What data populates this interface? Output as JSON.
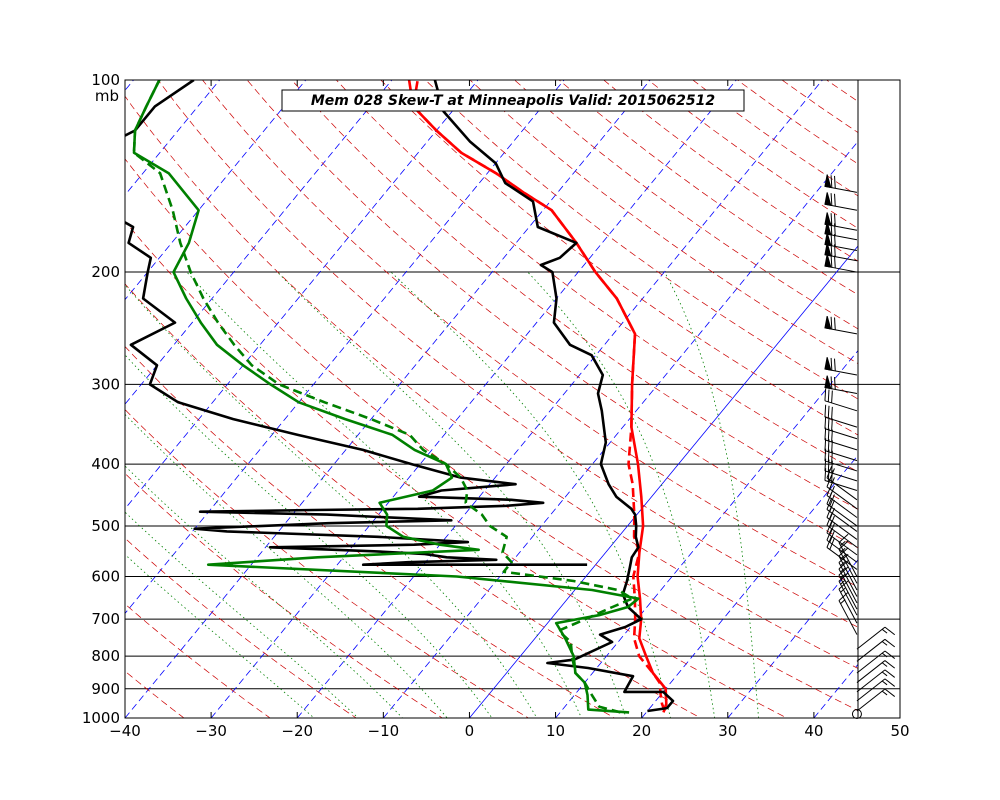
{
  "chart_data": {
    "type": "line",
    "title": "Mem 028  Skew-T at Minneapolis   Valid: 2015062512",
    "xlabel": "",
    "ylabel": "",
    "y_unit": "mb",
    "xlim": [
      -40,
      50
    ],
    "ylim": [
      1000,
      100
    ],
    "y_scale": "log",
    "x_ticks": [
      -40,
      -30,
      -20,
      -10,
      0,
      10,
      20,
      30,
      40,
      50
    ],
    "y_ticks": [
      1000,
      900,
      800,
      700,
      600,
      500,
      400,
      300,
      200,
      100
    ],
    "grid": true,
    "reference_lines": {
      "isotherms_blue_dashed": [
        -120,
        -110,
        -100,
        -90,
        -80,
        -70,
        -60,
        -50,
        -40,
        -30,
        -20,
        -10,
        10,
        20,
        30,
        40,
        50
      ],
      "zero_isotherm_blue_solid": 0,
      "dry_adiabats_red_dashed_theta_K": [
        240,
        250,
        260,
        270,
        280,
        290,
        300,
        310,
        320,
        330,
        340,
        350,
        360,
        370,
        380,
        390,
        400,
        410,
        420,
        430,
        440,
        450,
        460,
        470,
        480,
        490,
        500,
        520,
        540,
        560
      ],
      "moist_adiabats_green_dotted_start_C": [
        -15,
        -10,
        -5,
        0,
        5,
        10,
        15,
        20,
        25,
        30,
        35
      ]
    },
    "series": [
      {
        "color": "#ff0000",
        "style": "solid",
        "points": [
          [
            22,
            980
          ],
          [
            21.5,
            950
          ],
          [
            20,
            900
          ],
          [
            17,
            850
          ],
          [
            14.6,
            800
          ],
          [
            12.1,
            750
          ],
          [
            10.5,
            700
          ],
          [
            8.4,
            650
          ],
          [
            6,
            600
          ],
          [
            3.9,
            550
          ],
          [
            1.8,
            500
          ],
          [
            -1.2,
            450
          ],
          [
            -4.7,
            400
          ],
          [
            -9,
            350
          ],
          [
            -13,
            300
          ],
          [
            -17.5,
            250
          ],
          [
            -23,
            220
          ],
          [
            -28,
            200
          ],
          [
            -33,
            180
          ],
          [
            -39,
            160
          ],
          [
            -44,
            150
          ],
          [
            -49,
            140
          ],
          [
            -55,
            130
          ],
          [
            -60,
            120
          ],
          [
            -65,
            110
          ],
          [
            -68,
            100
          ]
        ]
      },
      {
        "color": "#ff0000",
        "style": "dashed",
        "points": [
          [
            22,
            975
          ],
          [
            21,
            950
          ],
          [
            20,
            920
          ],
          [
            18.7,
            880
          ],
          [
            17,
            850
          ],
          [
            13.8,
            800
          ],
          [
            11.5,
            750
          ],
          [
            9.8,
            700
          ],
          [
            7.8,
            650
          ],
          [
            5.5,
            600
          ],
          [
            3.9,
            550
          ],
          [
            1.8,
            520
          ],
          [
            -0.3,
            480
          ],
          [
            -3.4,
            430
          ],
          [
            -5.8,
            400
          ],
          [
            -9,
            350
          ],
          [
            -13,
            300
          ],
          [
            -17.5,
            250
          ],
          [
            -23,
            220
          ],
          [
            -28,
            200
          ],
          [
            -33,
            180
          ],
          [
            -39,
            160
          ],
          [
            -44,
            150
          ],
          [
            -49,
            140
          ],
          [
            -55,
            130
          ],
          [
            -60,
            120
          ],
          [
            -65,
            110
          ],
          [
            -67,
            100
          ]
        ]
      },
      {
        "color": "#000000",
        "style": "solid",
        "points": [
          [
            20,
            975
          ],
          [
            22,
            965
          ],
          [
            22,
            940
          ],
          [
            20,
            910
          ],
          [
            15.5,
            910
          ],
          [
            15,
            860
          ],
          [
            9,
            835
          ],
          [
            3.8,
            820
          ],
          [
            6.6,
            810
          ],
          [
            9.3,
            760
          ],
          [
            7.2,
            740
          ],
          [
            9.4,
            720
          ],
          [
            10.5,
            700
          ],
          [
            7.8,
            670
          ],
          [
            6,
            640
          ],
          [
            5.2,
            610
          ],
          [
            4.2,
            580
          ],
          [
            3.5,
            560
          ],
          [
            3.3,
            540
          ],
          [
            2,
            520
          ],
          [
            1,
            500
          ],
          [
            -0.2,
            480
          ],
          [
            -1.2,
            470
          ],
          [
            -4.1,
            450
          ],
          [
            -6.2,
            430
          ],
          [
            -9,
            400
          ],
          [
            -10.5,
            370
          ],
          [
            -14,
            330
          ],
          [
            -16.1,
            310
          ],
          [
            -17.3,
            290
          ],
          [
            -20.5,
            270
          ],
          [
            -24,
            260
          ],
          [
            -28,
            240
          ],
          [
            -30,
            220
          ],
          [
            -33,
            200
          ],
          [
            -35,
            195
          ],
          [
            -33.5,
            190
          ],
          [
            -33,
            180
          ],
          [
            -39,
            170
          ],
          [
            -42,
            155
          ],
          [
            -47,
            145
          ],
          [
            -50,
            135
          ],
          [
            -55,
            125
          ],
          [
            -61,
            112
          ],
          [
            -65,
            100
          ]
        ]
      },
      {
        "color": "#000000",
        "style": "solid",
        "points": [
          [
            -1,
            575
          ],
          [
            -13,
            575
          ],
          [
            -27,
            575
          ],
          [
            -22,
            570
          ],
          [
            -12,
            565
          ],
          [
            -18,
            560
          ],
          [
            -21,
            553
          ],
          [
            -27,
            548
          ],
          [
            -39.5,
            540
          ],
          [
            -23,
            535
          ],
          [
            -17,
            530
          ],
          [
            -28,
            520
          ],
          [
            -46,
            510
          ],
          [
            -50,
            505
          ],
          [
            -35,
            495
          ],
          [
            -21,
            490
          ],
          [
            -36,
            480
          ],
          [
            -51,
            475
          ],
          [
            -38,
            472
          ],
          [
            -26,
            470
          ],
          [
            -16,
            465
          ],
          [
            -12,
            460
          ],
          [
            -16,
            455
          ],
          [
            -27,
            450
          ],
          [
            -25,
            440
          ],
          [
            -17,
            430
          ],
          [
            -24,
            420
          ],
          [
            -31,
            400
          ],
          [
            -38,
            380
          ],
          [
            -47,
            360
          ],
          [
            -56,
            340
          ],
          [
            -64,
            320
          ],
          [
            -69,
            300
          ],
          [
            -70,
            280
          ],
          [
            -75,
            260
          ],
          [
            -72,
            240
          ],
          [
            -78,
            220
          ],
          [
            -80,
            200
          ],
          [
            -81,
            190
          ],
          [
            -85,
            180
          ],
          [
            -86,
            170
          ],
          [
            -91,
            160
          ],
          [
            -98,
            150
          ],
          [
            -101,
            140
          ],
          [
            -98,
            130
          ],
          [
            -95,
            120
          ],
          [
            -95,
            110
          ],
          [
            -93,
            100
          ]
        ]
      },
      {
        "color": "#008000",
        "style": "solid",
        "points": [
          [
            18,
            980
          ],
          [
            13,
            970
          ],
          [
            11.5,
            920
          ],
          [
            10,
            880
          ],
          [
            8,
            850
          ],
          [
            6.2,
            800
          ],
          [
            3.5,
            750
          ],
          [
            1,
            710
          ],
          [
            5.2,
            690
          ],
          [
            7.8,
            670
          ],
          [
            8.2,
            650
          ],
          [
            2,
            630
          ],
          [
            -15,
            600
          ],
          [
            -45,
            575
          ],
          [
            -33,
            560
          ],
          [
            -15,
            545
          ],
          [
            -20,
            535
          ],
          [
            -25,
            520
          ],
          [
            -28,
            500
          ],
          [
            -29,
            480
          ],
          [
            -31,
            460
          ],
          [
            -26,
            440
          ],
          [
            -25,
            420
          ],
          [
            -27,
            400
          ],
          [
            -32,
            380
          ],
          [
            -36,
            360
          ],
          [
            -43,
            340
          ],
          [
            -50,
            320
          ],
          [
            -55,
            300
          ],
          [
            -60,
            280
          ],
          [
            -65,
            260
          ],
          [
            -69,
            240
          ],
          [
            -73,
            220
          ],
          [
            -77,
            200
          ],
          [
            -78,
            180
          ],
          [
            -80,
            160
          ],
          [
            -87,
            140
          ],
          [
            -93,
            130
          ],
          [
            -95,
            120
          ],
          [
            -96,
            110
          ],
          [
            -97,
            100
          ]
        ]
      },
      {
        "color": "#008000",
        "style": "dashed",
        "points": [
          [
            17,
            980
          ],
          [
            14,
            960
          ],
          [
            12,
            920
          ],
          [
            10,
            880
          ],
          [
            8,
            850
          ],
          [
            6,
            800
          ],
          [
            4.5,
            760
          ],
          [
            2,
            730
          ],
          [
            4,
            700
          ],
          [
            6,
            670
          ],
          [
            7.5,
            650
          ],
          [
            5,
            630
          ],
          [
            -1,
            610
          ],
          [
            -10,
            590
          ],
          [
            -10,
            570
          ],
          [
            -12,
            550
          ],
          [
            -13,
            520
          ],
          [
            -16,
            500
          ],
          [
            -18,
            480
          ],
          [
            -21,
            460
          ],
          [
            -22,
            440
          ],
          [
            -24,
            420
          ],
          [
            -27,
            400
          ],
          [
            -31,
            380
          ],
          [
            -34,
            360
          ],
          [
            -40,
            340
          ],
          [
            -47,
            320
          ],
          [
            -54,
            300
          ],
          [
            -59,
            280
          ],
          [
            -63,
            260
          ],
          [
            -67,
            240
          ],
          [
            -71,
            220
          ],
          [
            -75,
            200
          ],
          [
            -79,
            180
          ],
          [
            -83,
            160
          ],
          [
            -88,
            140
          ],
          [
            -93,
            130
          ],
          [
            -95,
            120
          ],
          [
            -96,
            110
          ],
          [
            -97,
            100
          ]
        ]
      }
    ],
    "wind_barbs": {
      "column_x": 45,
      "pressures": [
        975,
        940,
        910,
        880,
        850,
        815,
        780,
        740,
        710,
        690,
        675,
        660,
        645,
        630,
        615,
        600,
        585,
        570,
        555,
        540,
        525,
        510,
        500,
        485,
        470,
        455,
        440,
        425,
        410,
        395,
        380,
        365,
        350,
        330,
        310,
        290,
        250,
        200,
        192,
        185,
        178,
        172,
        160,
        150
      ],
      "calm_marker_at": 1000
    }
  }
}
